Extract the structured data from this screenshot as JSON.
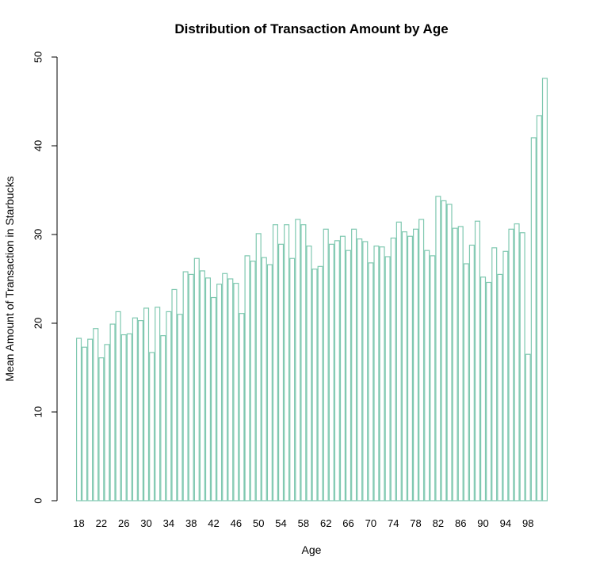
{
  "chart_data": {
    "type": "bar",
    "title": "Distribution of Transaction Amount by Age",
    "xlabel": "Age",
    "ylabel": "Mean Amount of Transaction in Starbucks",
    "ylim": [
      0,
      50
    ],
    "yticks": [
      "0",
      "10",
      "20",
      "30",
      "40",
      "50"
    ],
    "xtick_labels": [
      "18",
      "22",
      "26",
      "30",
      "34",
      "38",
      "42",
      "46",
      "50",
      "54",
      "58",
      "62",
      "66",
      "70",
      "74",
      "78",
      "82",
      "86",
      "90",
      "94",
      "98"
    ],
    "bar_color": "#7fc8b0",
    "grid": false,
    "categories": [
      "18",
      "19",
      "20",
      "21",
      "22",
      "23",
      "24",
      "25",
      "26",
      "27",
      "28",
      "29",
      "30",
      "31",
      "32",
      "33",
      "34",
      "35",
      "36",
      "37",
      "38",
      "39",
      "40",
      "41",
      "42",
      "43",
      "44",
      "45",
      "46",
      "47",
      "48",
      "49",
      "50",
      "51",
      "52",
      "53",
      "54",
      "55",
      "56",
      "57",
      "58",
      "59",
      "60",
      "61",
      "62",
      "63",
      "64",
      "65",
      "66",
      "67",
      "68",
      "69",
      "70",
      "71",
      "72",
      "73",
      "74",
      "75",
      "76",
      "77",
      "78",
      "79",
      "80",
      "81",
      "82",
      "83",
      "84",
      "85",
      "86",
      "87",
      "88",
      "89",
      "90",
      "91",
      "92",
      "93",
      "94",
      "95",
      "96",
      "97",
      "98",
      "99",
      "100",
      "101"
    ],
    "values": [
      18.3,
      17.3,
      18.2,
      19.4,
      16.1,
      17.6,
      19.9,
      21.3,
      18.7,
      18.8,
      20.6,
      20.3,
      21.7,
      16.7,
      21.8,
      18.6,
      21.3,
      23.8,
      21.0,
      25.8,
      25.5,
      27.3,
      25.9,
      25.1,
      22.9,
      24.4,
      25.6,
      25.0,
      24.5,
      21.1,
      27.6,
      27.0,
      30.1,
      27.4,
      26.6,
      31.1,
      28.9,
      31.1,
      27.3,
      31.7,
      31.1,
      28.7,
      26.1,
      26.4,
      30.6,
      28.9,
      29.3,
      29.8,
      28.2,
      30.6,
      29.5,
      29.2,
      26.8,
      28.7,
      28.6,
      27.5,
      29.6,
      31.4,
      30.3,
      29.8,
      30.6,
      31.7,
      28.2,
      27.6,
      34.3,
      33.8,
      33.4,
      30.7,
      30.9,
      26.7,
      28.8,
      31.5,
      25.2,
      24.6,
      28.5,
      25.5,
      28.1,
      30.6,
      31.2,
      30.2,
      16.5,
      40.9,
      43.4,
      47.6
    ]
  }
}
